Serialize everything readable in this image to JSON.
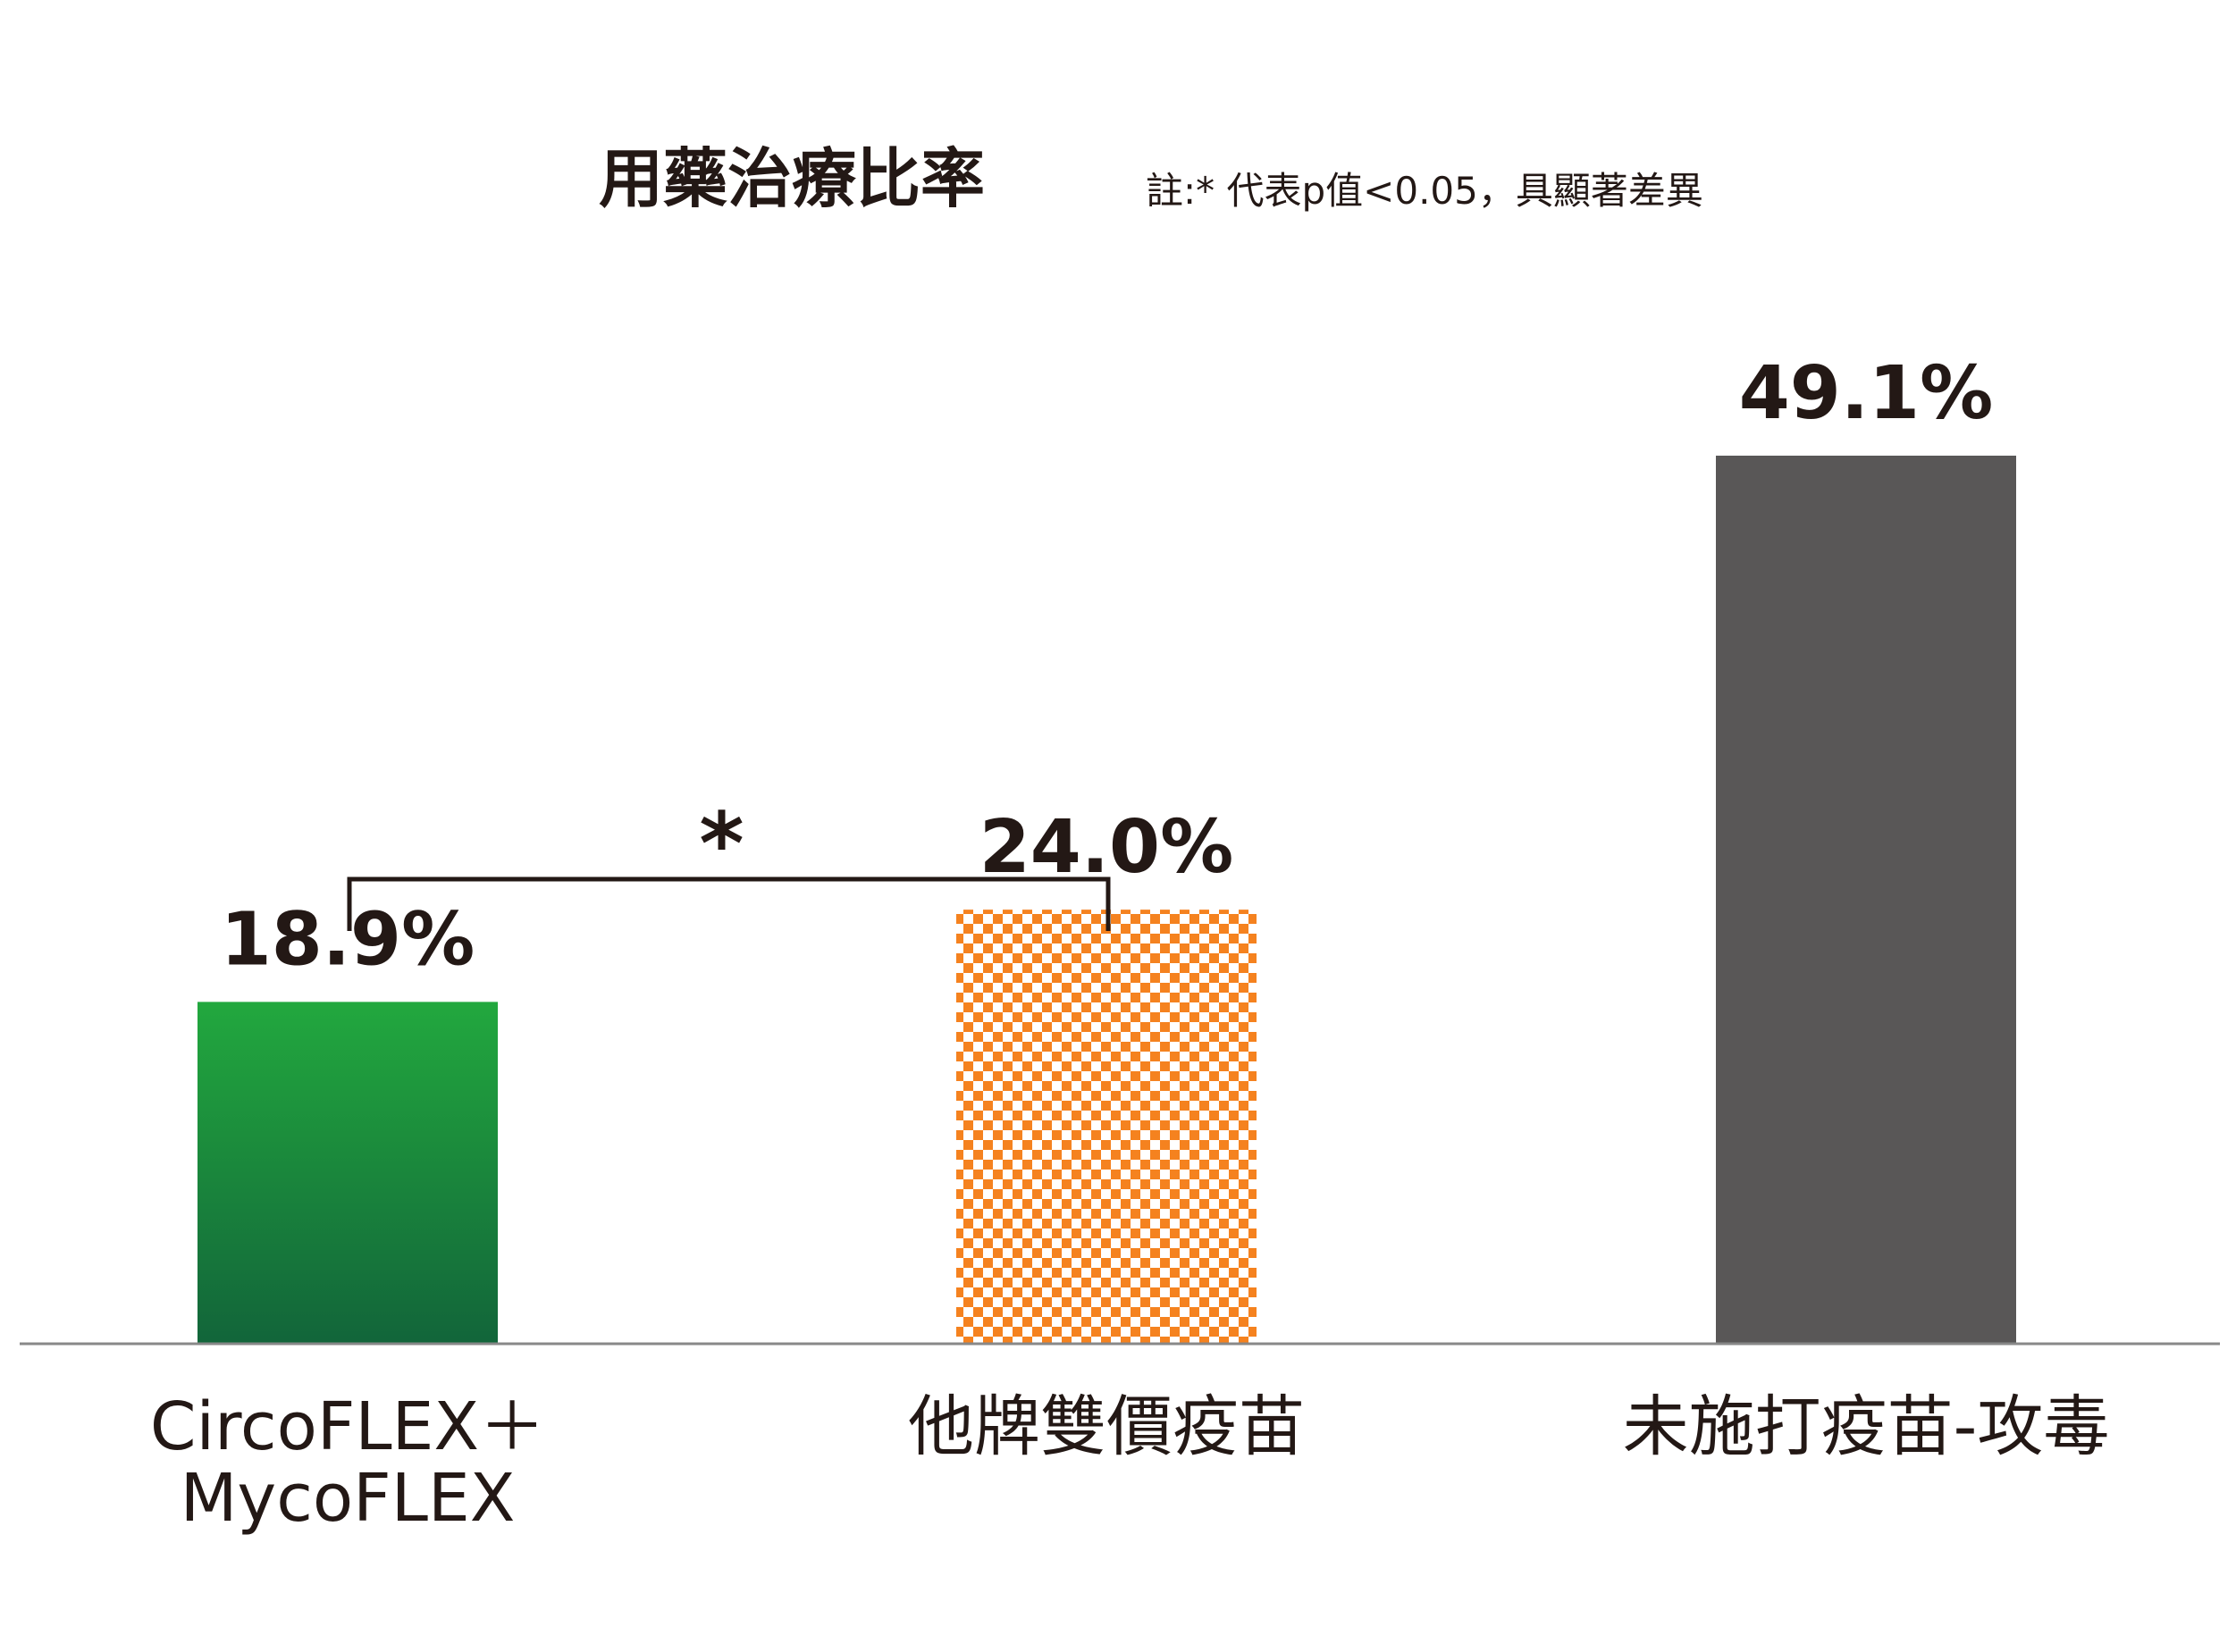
{
  "chart_data": {
    "type": "bar",
    "title": "用藥治療比率",
    "note": "註:* 代表p值<0.05，具顯著差異",
    "categories": [
      [
        "CircoFLEX＋",
        "MycoFLEX"
      ],
      [
        "他牌雙價疫苗"
      ],
      [
        "未施打疫苗-攻毒"
      ]
    ],
    "values": [
      18.9,
      24.0,
      49.1
    ],
    "value_labels": [
      "18.9%",
      "24.0%",
      "49.1%"
    ],
    "unit": "%",
    "ylim": [
      0,
      49.1
    ],
    "grid": false,
    "legend": "none",
    "bar_styles": [
      {
        "fill": "gradient",
        "colors": [
          "#22A83E",
          "#12653A"
        ]
      },
      {
        "fill": "checker",
        "colors": [
          "#F5821F",
          "#FFFFFF"
        ]
      },
      {
        "fill": "solid",
        "colors": [
          "#595757"
        ]
      }
    ],
    "significance": {
      "between": [
        0,
        1
      ],
      "marker": "*"
    }
  },
  "colors": {
    "text": "#231815",
    "axis": "#888888"
  }
}
